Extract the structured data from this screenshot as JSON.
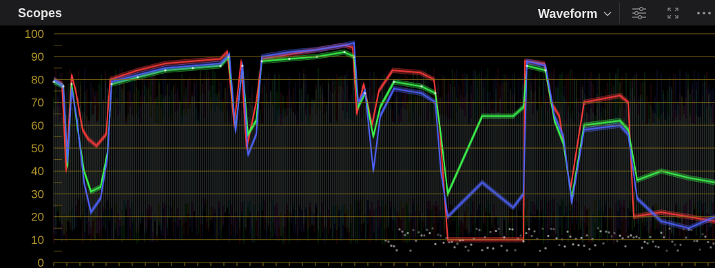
{
  "panel": {
    "title": "Scopes"
  },
  "toolbar": {
    "mode_label": "Waveform",
    "icons": [
      "chevron-down-icon",
      "sliders-icon",
      "expand-icon",
      "more-options-icon"
    ]
  },
  "waveform": {
    "scale_labels": [
      "100",
      "90",
      "80",
      "70",
      "60",
      "50",
      "40",
      "30",
      "20",
      "10",
      "0"
    ],
    "colors": {
      "background": "#000000",
      "header": "#1c1c1e",
      "gridline": "#8c7318",
      "scale_text": "#b4962a",
      "red_trace": "#ff3c3c",
      "green_trace": "#3cff50",
      "blue_trace": "#5064ff"
    }
  }
}
